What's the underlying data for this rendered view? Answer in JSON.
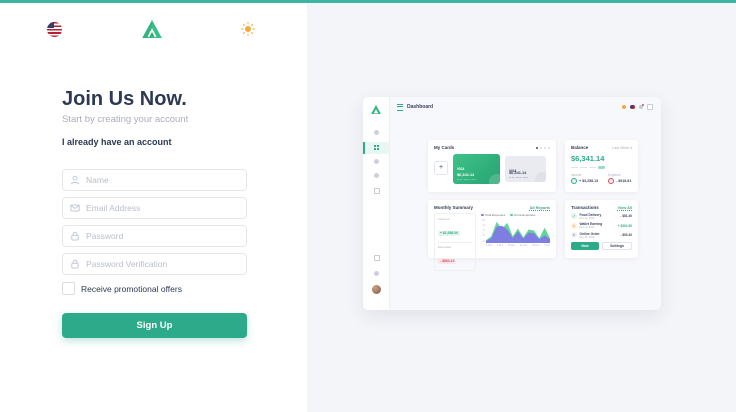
{
  "colors": {
    "accent": "#2daa8a",
    "topbar_accent": "#3cb5a1",
    "heading_navy": "#2d3a53",
    "muted_gray": "#a9aeb9",
    "danger_red": "#d94c5f",
    "chart_purple": "#8177e8",
    "chart_green": "#4fd08c",
    "sun_yellow": "#f2a83c"
  },
  "topbar": {
    "icons": [
      "us-flag-icon",
      "brand-logo",
      "sun-icon"
    ]
  },
  "signup": {
    "title": "Join Us Now.",
    "subtitle": "Start by creating your account",
    "login_link": "I already have an account",
    "fields": [
      {
        "placeholder": "Name",
        "icon": "person-icon"
      },
      {
        "placeholder": "Email Address",
        "icon": "envelope-icon"
      },
      {
        "placeholder": "Password",
        "icon": "lock-icon"
      },
      {
        "placeholder": "Password Verification",
        "icon": "lock-icon"
      }
    ],
    "promo_label": "Receive promotional offers",
    "submit_label": "Sign Up"
  },
  "preview": {
    "header": {
      "title": "Dashboard",
      "right_icons": [
        "sun-icon",
        "us-flag-icon",
        "bell-icon",
        "grid-icon"
      ]
    },
    "sidebar_icons": [
      "activity-icon",
      "dashboard-icon",
      "settings-icon",
      "reports-icon",
      "file-icon",
      "search-icon",
      "help-icon",
      "avatar"
    ],
    "my_cards": {
      "title": "My Cards",
      "cards": [
        {
          "brand": "VISA",
          "amount": "$6,341.14",
          "masked": "**** **** ****",
          "style": "green"
        },
        {
          "brand": "VISA",
          "amount": "$6,341.14",
          "masked": "**** **** ****",
          "style": "gray"
        }
      ]
    },
    "balance": {
      "title": "Balance",
      "range": "Last Week ▾",
      "amount": "$6,341.14",
      "income_label": "Income",
      "income_value": "+ $3,258.13",
      "expense_label": "Expense",
      "expense_value": "- $918.81"
    },
    "monthly_summary": {
      "title": "Monthly Summary",
      "link": "All Reports",
      "incomes_label": "Incomes",
      "incomes_value": "+ $2,356.00",
      "expenses_label": "Expenses",
      "expenses_value": "- $863.19"
    },
    "transactions": {
      "title": "Transactions",
      "link": "View All",
      "items": [
        {
          "name": "Food Delivery",
          "date": "Dec 12, 2020",
          "amount": "- $81.40",
          "icon": "check-icon",
          "type": "debit"
        },
        {
          "name": "Wallet Earning",
          "date": "Dec 14, 2020",
          "amount": "+ $392.50",
          "icon": "dollar-icon",
          "type": "credit"
        },
        {
          "name": "Online Order",
          "date": "Dec 16, 2020",
          "amount": "- $93.40",
          "icon": "refresh-icon",
          "type": "debit"
        }
      ],
      "new_button": "New",
      "settings_button": "Settings"
    }
  },
  "chart_data": {
    "type": "area",
    "title": "Monthly Summary",
    "x_labels": [
      "1 Dec",
      "8 Dec",
      "15 Dec",
      "22 Dec",
      "29 Dec",
      "5 Jan"
    ],
    "y_ticks": [
      10,
      20,
      30,
      40,
      50
    ],
    "ylim": [
      0,
      50
    ],
    "grid": false,
    "legend_position": "top",
    "series": [
      {
        "name": "Total Expenses",
        "color": "#8177e8",
        "values": [
          4,
          10,
          34,
          36,
          28,
          10,
          24,
          9,
          22,
          20,
          8,
          16,
          8
        ]
      },
      {
        "name": "Extra Expenses",
        "color": "#4fd08c",
        "values": [
          6,
          14,
          44,
          30,
          42,
          14,
          30,
          12,
          28,
          26,
          10,
          32,
          10
        ]
      }
    ]
  }
}
